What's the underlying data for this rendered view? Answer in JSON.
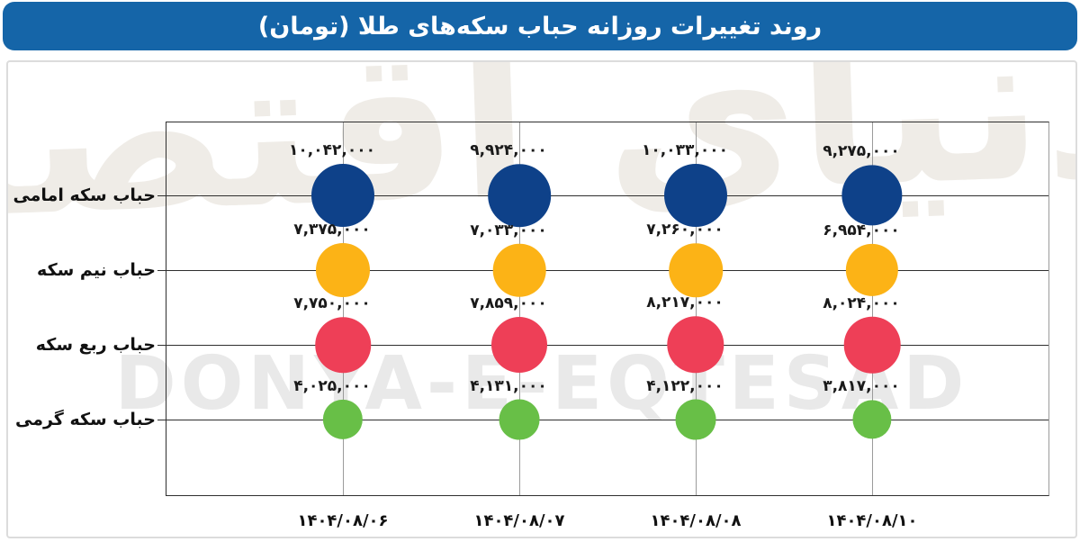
{
  "header": {
    "title": "روند تغییرات روزانه حباب سکه‌های طلا (تومان)"
  },
  "watermark": {
    "latin": "DONYA-E-EQTESAD",
    "persian": "دنیای اقتصاد"
  },
  "colors": {
    "banner_blue": "#1565a8",
    "emami_blue": "#0e4189",
    "nim_yellow": "#fcb316",
    "rob_red": "#ee3f57",
    "gerami_green": "#68bf47",
    "grid_vertical": "#9b9b9b",
    "grid_horizontal": "#2f2f2f"
  },
  "chart_data": {
    "type": "bubble",
    "title": "روند تغییرات روزانه حباب سکه‌های طلا (تومان)",
    "unit": "تومان",
    "grid": true,
    "legend_position": "none",
    "x_categories": [
      "۱۴۰۴/۰۸/۰۶",
      "۱۴۰۴/۰۸/۰۷",
      "۱۴۰۴/۰۸/۰۸",
      "۱۴۰۴/۰۸/۱۰"
    ],
    "series": [
      {
        "name": "حباب سکه امامی",
        "color": "#0e4189",
        "values": [
          10042000,
          9924000,
          10033000,
          9275000
        ],
        "value_labels": [
          "۱۰,۰۴۲,۰۰۰",
          "۹,۹۲۴,۰۰۰",
          "۱۰,۰۳۳,۰۰۰",
          "۹,۲۷۵,۰۰۰"
        ]
      },
      {
        "name": "حباب نیم سکه",
        "color": "#fcb316",
        "values": [
          7375000,
          7033000,
          7260000,
          6954000
        ],
        "value_labels": [
          "۷,۳۷۵,۰۰۰",
          "۷,۰۳۳,۰۰۰",
          "۷,۲۶۰,۰۰۰",
          "۶,۹۵۴,۰۰۰"
        ]
      },
      {
        "name": "حباب ربع سکه",
        "color": "#ee3f57",
        "values": [
          7750000,
          7859000,
          8217000,
          8024000
        ],
        "value_labels": [
          "۷,۷۵۰,۰۰۰",
          "۷,۸۵۹,۰۰۰",
          "۸,۲۱۷,۰۰۰",
          "۸,۰۲۴,۰۰۰"
        ]
      },
      {
        "name": "حباب سکه گرمی",
        "color": "#68bf47",
        "values": [
          4025000,
          4131000,
          4122000,
          3817000
        ],
        "value_labels": [
          "۴,۰۲۵,۰۰۰",
          "۴,۱۳۱,۰۰۰",
          "۴,۱۲۲,۰۰۰",
          "۳,۸۱۷,۰۰۰"
        ]
      }
    ]
  }
}
